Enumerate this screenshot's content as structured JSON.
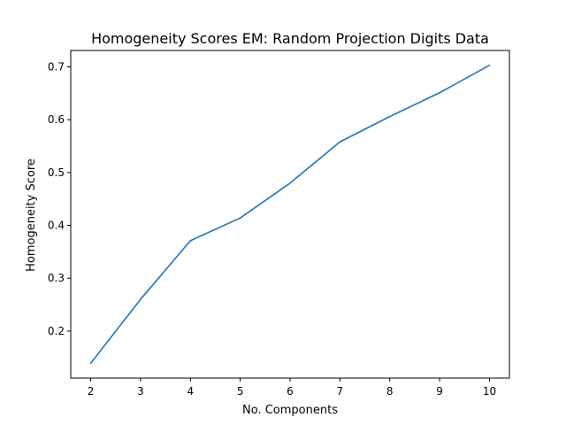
{
  "chart_data": {
    "type": "line",
    "title": "Homogeneity Scores EM: Random Projection Digits Data",
    "xlabel": "No. Components",
    "ylabel": "Homogeneity Score",
    "x": [
      2,
      3,
      4,
      5,
      6,
      7,
      8,
      9,
      10
    ],
    "series": [
      {
        "values": [
          0.139,
          0.26,
          0.371,
          0.414,
          0.48,
          0.558,
          0.606,
          0.651,
          0.703
        ],
        "color": "#1f77b4"
      }
    ],
    "xlim": [
      1.6,
      10.4
    ],
    "ylim": [
      0.111,
      0.731
    ],
    "xticks": [
      2,
      3,
      4,
      5,
      6,
      7,
      8,
      9,
      10
    ],
    "yticks": [
      0.2,
      0.3,
      0.4,
      0.5,
      0.6,
      0.7
    ],
    "ytick_labels": [
      "0.2",
      "0.3",
      "0.4",
      "0.5",
      "0.6",
      "0.7"
    ],
    "grid": false,
    "legend": false
  }
}
